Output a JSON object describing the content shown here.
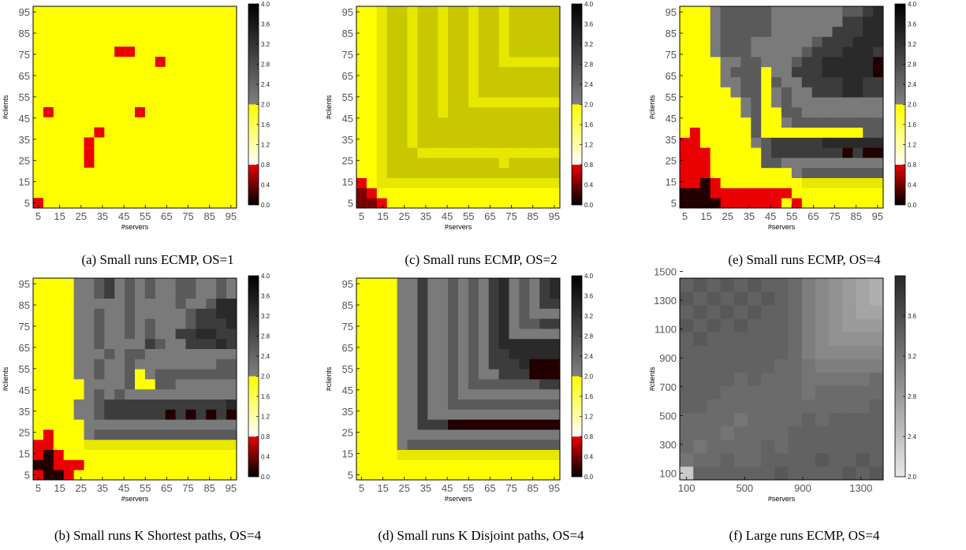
{
  "chart_data": [
    {
      "id": "a",
      "type": "heatmap",
      "caption": "(a) Small runs ECMP, OS=1",
      "xlabel": "#servers",
      "ylabel": "#clients",
      "xticks": [
        "5",
        "15",
        "25",
        "35",
        "45",
        "55",
        "65",
        "75",
        "85",
        "95"
      ],
      "yticks": [
        "5",
        "15",
        "25",
        "35",
        "45",
        "55",
        "65",
        "75",
        "85",
        "95"
      ],
      "x_range": [
        5,
        100
      ],
      "y_range": [
        5,
        100
      ],
      "grid_n": 20,
      "colorbar": {
        "kind": "threshold",
        "min": 0.0,
        "max": 4.0,
        "ticks": [
          "0.0",
          "0.4",
          "0.8",
          "1.2",
          "1.6",
          "2.0",
          "2.4",
          "2.8",
          "3.2",
          "3.6",
          "4.0"
        ]
      },
      "cells": [
        "YYYYYYYYYYYYYYYYYYYY",
        "YYYYYYYYYYYYYYYYYYYY",
        "YYYYYYYYYYYYYYYYYYYY",
        "YYYYYYYYYYYYYYYYYYYY",
        "YYYYYYYYYYYYYYYYYYYY",
        "YYYYYYYYYYYYYYYYYYYY",
        "YYYYYYYYYYYYYYYYYYYY",
        "YYYYYYYYYYYYYYYYYYYY",
        "YYYYYYYYYYYYYYYYYYYY",
        "YYYYYYYYYYYYYYYYYYYY",
        "YYYYYYYYYYYYYYYYYYYY",
        "YYYYYYYYYYYYYYYYYYYY",
        "YYYYYYYYYYYYYYYYYYYY",
        "YYYYYYYYYYYYYYYYYYYY",
        "YYYYYYYYYYYYYYYYYYYY",
        "YYYYYYYYYYYYYYYYYYYY",
        "YYYYYYYYYYYYYYYYYYYY",
        "YYYYYYYYYYYYYYYYYYYY",
        "YYYYYYYYYYYYYYYYYYYY",
        "YYYYYYYYYYYYYYYYYYYY"
      ],
      "highlights": [
        [
          0,
          0
        ],
        [
          1,
          9
        ],
        [
          9,
          15
        ],
        [
          6,
          7
        ],
        [
          5,
          6
        ],
        [
          5,
          5
        ],
        [
          5,
          4
        ],
        [
          10,
          9
        ],
        [
          8,
          15
        ],
        [
          12,
          14
        ]
      ]
    },
    {
      "id": "c",
      "type": "heatmap",
      "caption": "(c) Small runs ECMP, OS=2",
      "xlabel": "#servers",
      "ylabel": "#clients",
      "xticks": [
        "5",
        "15",
        "25",
        "35",
        "45",
        "55",
        "65",
        "75",
        "85",
        "95"
      ],
      "yticks": [
        "5",
        "15",
        "25",
        "35",
        "45",
        "55",
        "65",
        "75",
        "85",
        "95"
      ],
      "x_range": [
        5,
        100
      ],
      "y_range": [
        5,
        100
      ],
      "grid_n": 20,
      "colorbar": {
        "kind": "threshold",
        "min": 0.0,
        "max": 4.0,
        "ticks": [
          "0.0",
          "0.4",
          "0.8",
          "1.2",
          "1.6",
          "2.0",
          "2.4",
          "2.8",
          "3.2",
          "3.6",
          "4.0"
        ]
      },
      "cells": [
        "rrRYYYYYYYYYYYYYYYYY",
        "rRYYYYYYYYYYYYYYYYYY",
        "RYyyyyyyyyyyyyyyyyyy",
        "YYyooooooooooooooooo",
        "YYyoooooooooooyooooo",
        "YYyoooyyyyyyyyyyyyyy",
        "YYyooyoooooooooooooo",
        "YYyooyoooooooooooooo",
        "YYyooyoooooooooooooo",
        "YYyooyooyooooooooooo",
        "YYyooyooyooyyyyyyyyy",
        "YYyooyooyooyoooooooo",
        "YYyooyooyooyoooooooo",
        "YYyooyooyooyoooooooo",
        "YYyooyooyooyooyyyyyy",
        "YYyooyooyooyooyooooo",
        "YYyooyooyooyooyooooo",
        "YYyooyooyooyooyooooo",
        "YYyooyooyooyooyooooo",
        "YYyooyooyooyooyooooo"
      ]
    },
    {
      "id": "e",
      "type": "heatmap",
      "caption": "(e) Small runs ECMP, OS=4",
      "xlabel": "#servers",
      "ylabel": "#clients",
      "xticks": [
        "5",
        "15",
        "25",
        "35",
        "45",
        "55",
        "65",
        "75",
        "85",
        "95"
      ],
      "yticks": [
        "5",
        "15",
        "25",
        "35",
        "45",
        "55",
        "65",
        "75",
        "85",
        "95"
      ],
      "x_range": [
        5,
        100
      ],
      "y_range": [
        5,
        100
      ],
      "grid_n": 20,
      "colorbar": {
        "kind": "threshold",
        "min": 0.0,
        "max": 4.0,
        "ticks": [
          "0.0",
          "0.4",
          "0.8",
          "1.2",
          "1.6",
          "2.0",
          "2.4",
          "2.8",
          "3.2",
          "3.6",
          "4.0"
        ]
      },
      "cells": [
        "kkkkRRRRRRYRYYYYYYYY",
        "kkkRRRRRRRRYYYYYYYYY",
        "RRkRYYYYYYYYyyyyyyyy",
        "RRRYYYYYYYYGgggggggg",
        "RRRYYYYYggGGGGGGGGGG",
        "RRRYYYYYgdddddddkdkk",
        "RRYYYYYGgdddddDDDDDD",
        "YRYYYYYgYYYYYYYYYYgg",
        "YYYYYYYgYYGggggggggg",
        "YYYYYYGgYYggGGGGGGGG",
        "YYYYYYGgYGgGGGGGGGGG",
        "YYYYYGggYGgGGdddDDdd",
        "YYYYGGggYgGGddddDDdd",
        "YYYYGgggYGGdddDDDDDk",
        "YYYYGGggGGGgddDDDDDk",
        "YYYGgggGGGGGgdddDDDd",
        "YYYGgggGGGGGGgdddDDD",
        "YYYGgggggGGGGGGdddDD",
        "YYYGgggggGGGGGGGddDD",
        "YYYGgggggGGGGGGGggdD"
      ]
    },
    {
      "id": "b",
      "type": "heatmap",
      "caption": "(b) Small runs K Shortest paths, OS=4",
      "xlabel": "#servers",
      "ylabel": "#clients",
      "xticks": [
        "5",
        "15",
        "25",
        "35",
        "45",
        "55",
        "65",
        "75",
        "85",
        "95"
      ],
      "yticks": [
        "5",
        "15",
        "25",
        "35",
        "45",
        "55",
        "65",
        "75",
        "85",
        "95"
      ],
      "x_range": [
        5,
        100
      ],
      "y_range": [
        5,
        100
      ],
      "grid_n": 20,
      "colorbar": {
        "kind": "threshold",
        "min": 0.0,
        "max": 4.0,
        "ticks": [
          "0.0",
          "0.4",
          "0.8",
          "1.2",
          "1.6",
          "2.0",
          "2.4",
          "2.8",
          "3.2",
          "3.6",
          "4.0"
        ]
      },
      "cells": [
        "RkkRYYYYYYYYYYYYYYYY",
        "kkRRRYYYYYYYYYYYYYYY",
        "RkRYYYYYYYYYYYYYYYYY",
        "RRYYYyyyyyyyyyyyyyyy",
        "YRYYYGgggggggggggggg",
        "YYYYYGGGGGGGGGGGGGGG",
        "YYYYGGgddddddkdkdkdk",
        "YYYYGGgddddddddddddD",
        "YYYYYGgGgGGGGGGGGGGG",
        "YYYYYGGGGgYYggGGGGGG",
        "YYYYGGgGGgYGgggggggg",
        "YYYYGGgGGgGGGGGGGGgg",
        "YYYYGGGgGggGGGGGGGGG",
        "YYYYGGgGGGGdgGGdddDd",
        "YYYYGGgGGgGgGGddDDdd",
        "YYYYGGgGGgGgGGGgdddD",
        "YYYYGGgGGgGGGGGgddDD",
        "YYYYGGGGGgGGGGgGGgDD",
        "YYYYGGgdGgGgGGggGGgG",
        "YYYYGGgdGgGgGGggGGgG"
      ]
    },
    {
      "id": "d",
      "type": "heatmap",
      "caption": "(d) Small runs K Disjoint paths, OS=4",
      "xlabel": "#servers",
      "ylabel": "#clients",
      "xticks": [
        "5",
        "15",
        "25",
        "35",
        "45",
        "55",
        "65",
        "75",
        "85",
        "95"
      ],
      "yticks": [
        "5",
        "15",
        "25",
        "35",
        "45",
        "55",
        "65",
        "75",
        "85",
        "95"
      ],
      "x_range": [
        5,
        100
      ],
      "y_range": [
        5,
        100
      ],
      "grid_n": 20,
      "colorbar": {
        "kind": "threshold",
        "min": 0.0,
        "max": 4.0,
        "ticks": [
          "0.0",
          "0.4",
          "0.8",
          "1.2",
          "1.6",
          "2.0",
          "2.4",
          "2.8",
          "3.2",
          "3.6",
          "4.0"
        ]
      },
      "cells": [
        "YYYYYYYYYYYYYYYYYYYY",
        "YYYYYYYYYYYYYYYYYYYY",
        "YYYYyyyyyyyyyyyyyyyy",
        "YYYYGggggggggggggggg",
        "YYYYGGGGGGGGGGGGGGGG",
        "YYYYGGdddkkkkkkkkkkk",
        "YYYYGGdGGGGGGGGGGGGG",
        "YYYYGGdGGggggggggggg",
        "YYYYGGdGGgGGGGGGGGGG",
        "YYYYGGdGGgGgggggggdd",
        "YYYYGGdGGgGgGGdddkkk",
        "YYYYGGdGGgGgGdddDkkk",
        "YYYYGGdGGgGgGddDDDDD",
        "YYYYGGdGGgGgGdDDDDDD",
        "YYYYGGdGGgGgGdDGGGGG",
        "YYYYGGdGGgGgGdDGggdd",
        "YYYYGGdGGgGgGdDGgGGG",
        "YYYYGGdGGgGgGdDGgGdd",
        "YYYYGGdGGgGgGdDGgGdD",
        "YYYYGGdGGgGgGdDGgGdD"
      ]
    },
    {
      "id": "f",
      "type": "heatmap",
      "caption": "(f) Large runs ECMP, OS=4",
      "xlabel": "#servers",
      "ylabel": "#clients",
      "xticks": [
        "100",
        "500",
        "900",
        "1300"
      ],
      "yticks": [
        "100",
        "300",
        "500",
        "700",
        "900",
        "1100",
        "1300",
        "1500"
      ],
      "x_range": [
        100,
        1500
      ],
      "y_range": [
        100,
        1500
      ],
      "grid_n": 15,
      "colorbar": {
        "kind": "gray",
        "min": 2.0,
        "max": 4.0,
        "ticks": [
          "2.0",
          "2.4",
          "2.8",
          "3.2",
          "3.6"
        ]
      },
      "values": [
        [
          2.3,
          3.4,
          3.4,
          3.4,
          3.4,
          3.4,
          3.4,
          3.5,
          3.4,
          3.4,
          3.4,
          3.4,
          3.5,
          3.4,
          3.5
        ],
        [
          3.2,
          3.3,
          3.3,
          3.4,
          3.3,
          3.3,
          3.4,
          3.4,
          3.4,
          3.4,
          3.5,
          3.4,
          3.4,
          3.5,
          3.4
        ],
        [
          3.3,
          3.2,
          3.3,
          3.3,
          3.3,
          3.3,
          3.4,
          3.3,
          3.4,
          3.4,
          3.4,
          3.4,
          3.4,
          3.4,
          3.4
        ],
        [
          3.3,
          3.3,
          3.3,
          3.2,
          3.3,
          3.3,
          3.3,
          3.3,
          3.4,
          3.4,
          3.4,
          3.4,
          3.4,
          3.4,
          3.4
        ],
        [
          3.3,
          3.3,
          3.3,
          3.3,
          3.2,
          3.3,
          3.3,
          3.3,
          3.3,
          3.4,
          3.3,
          3.4,
          3.4,
          3.4,
          3.4
        ],
        [
          3.4,
          3.4,
          3.3,
          3.3,
          3.3,
          3.3,
          3.3,
          3.3,
          3.3,
          3.3,
          3.3,
          3.3,
          3.3,
          3.3,
          3.4
        ],
        [
          3.4,
          3.4,
          3.4,
          3.3,
          3.3,
          3.3,
          3.3,
          3.3,
          3.3,
          3.2,
          3.3,
          3.3,
          3.3,
          3.3,
          3.3
        ],
        [
          3.4,
          3.4,
          3.4,
          3.4,
          3.3,
          3.4,
          3.3,
          3.3,
          3.3,
          3.2,
          3.2,
          3.2,
          3.2,
          3.2,
          3.3
        ],
        [
          3.4,
          3.4,
          3.4,
          3.4,
          3.4,
          3.4,
          3.4,
          3.3,
          3.3,
          3.2,
          3.1,
          3.1,
          3.1,
          3.1,
          3.1
        ],
        [
          3.4,
          3.4,
          3.4,
          3.4,
          3.4,
          3.4,
          3.4,
          3.4,
          3.3,
          3.1,
          3.0,
          3.0,
          3.0,
          3.0,
          3.0
        ],
        [
          3.4,
          3.5,
          3.4,
          3.4,
          3.4,
          3.4,
          3.4,
          3.4,
          3.3,
          3.1,
          3.0,
          2.9,
          2.9,
          2.9,
          2.9
        ],
        [
          3.5,
          3.4,
          3.5,
          3.4,
          3.5,
          3.4,
          3.4,
          3.4,
          3.3,
          3.1,
          3.0,
          2.9,
          2.8,
          2.8,
          2.8
        ],
        [
          3.4,
          3.5,
          3.4,
          3.5,
          3.4,
          3.5,
          3.4,
          3.4,
          3.3,
          3.1,
          3.0,
          2.9,
          2.8,
          2.7,
          2.7
        ],
        [
          3.5,
          3.4,
          3.5,
          3.4,
          3.5,
          3.4,
          3.5,
          3.4,
          3.3,
          3.1,
          3.0,
          2.9,
          2.8,
          2.7,
          2.6
        ],
        [
          3.4,
          3.5,
          3.4,
          3.5,
          3.4,
          3.5,
          3.4,
          3.4,
          3.3,
          3.1,
          3.0,
          2.9,
          2.8,
          2.7,
          2.6
        ]
      ]
    }
  ],
  "palette": {
    "k": "#220000",
    "r": "#7a0000",
    "R": "#ea0000",
    "Y": "#ffff00",
    "y": "#e7e700",
    "o": "#c8c800",
    "G": "#7a7a7a",
    "g": "#5a5a5a",
    "d": "#3c3c3c",
    "D": "#2a2a2a"
  },
  "threshold_colors": {
    "red": "#ea0000",
    "yellow": "#ffff00",
    "gray": "#808080",
    "black": "#000000"
  }
}
